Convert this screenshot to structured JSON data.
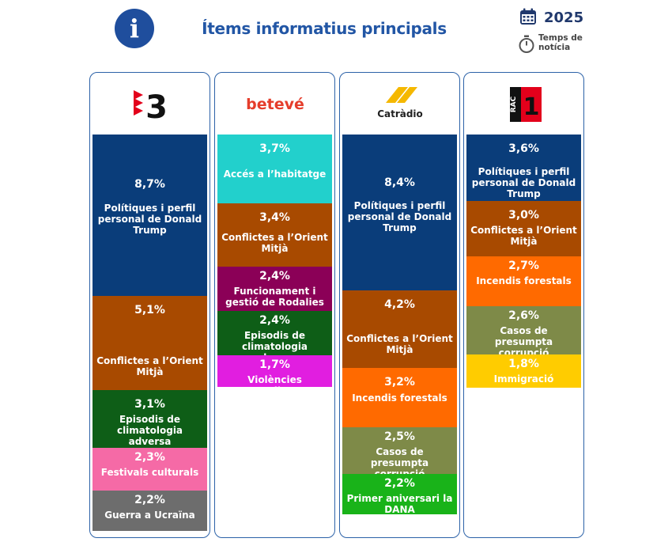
{
  "header": {
    "title": "Ítems informatius principals",
    "year": "2025",
    "time_label": "Temps de notícia",
    "icons": [
      "info-icon",
      "calendar-icon",
      "stopwatch-icon"
    ]
  },
  "chart_data": {
    "type": "bar",
    "stacked": true,
    "title": "Ítems informatius principals",
    "unit": "%",
    "panels": [
      {
        "name": "3",
        "logo": "tv3-logo",
        "items": [
          {
            "label": "Polítiques i perfil personal de Donald Trump",
            "value": 8.7,
            "display": "8,7%",
            "color": "#0a3d7a"
          },
          {
            "label": "Conflictes a l’Orient Mitjà",
            "value": 5.1,
            "display": "5,1%",
            "color": "#a84a00"
          },
          {
            "label": "Episodis de climatologia adversa",
            "value": 3.1,
            "display": "3,1%",
            "color": "#0e5e17"
          },
          {
            "label": "Festivals culturals",
            "value": 2.3,
            "display": "2,3%",
            "color": "#f56aa6"
          },
          {
            "label": "Guerra a Ucraïna",
            "value": 2.2,
            "display": "2,2%",
            "color": "#6d6d6d"
          }
        ]
      },
      {
        "name": "betevé",
        "logo": "betevé-logo",
        "items": [
          {
            "label": "Accés a l’habitatge",
            "value": 3.7,
            "display": "3,7%",
            "color": "#22d0cc"
          },
          {
            "label": "Conflictes a l’Orient Mitjà",
            "value": 3.4,
            "display": "3,4%",
            "color": "#a84a00"
          },
          {
            "label": "Funcionament i gestió de Rodalies",
            "value": 2.4,
            "display": "2,4%",
            "color": "#8b0057"
          },
          {
            "label": "Episodis de climatologia adversa",
            "value": 2.4,
            "display": "2,4%",
            "color": "#0e5e17"
          },
          {
            "label": "Violències masclistes",
            "value": 1.7,
            "display": "1,7%",
            "color": "#e11ee0"
          }
        ]
      },
      {
        "name": "Catràdio",
        "logo": "catràdio-logo",
        "items": [
          {
            "label": "Polítiques i perfil personal de Donald Trump",
            "value": 8.4,
            "display": "8,4%",
            "color": "#0a3d7a"
          },
          {
            "label": "Conflictes a l’Orient Mitjà",
            "value": 4.2,
            "display": "4,2%",
            "color": "#a84a00"
          },
          {
            "label": "Incendis forestals",
            "value": 3.2,
            "display": "3,2%",
            "color": "#ff6a00"
          },
          {
            "label": "Casos de presumpta corrupció",
            "value": 2.5,
            "display": "2,5%",
            "color": "#7e8a48"
          },
          {
            "label": "Primer aniversari la DANA",
            "value": 2.2,
            "display": "2,2%",
            "color": "#19b319"
          }
        ]
      },
      {
        "name": "RAC 1",
        "logo": "rac1-logo",
        "items": [
          {
            "label": "Polítiques i perfil personal de Donald Trump",
            "value": 3.6,
            "display": "3,6%",
            "color": "#0a3d7a"
          },
          {
            "label": "Conflictes a l’Orient Mitjà",
            "value": 3.0,
            "display": "3,0%",
            "color": "#a84a00"
          },
          {
            "label": "Incendis forestals",
            "value": 2.7,
            "display": "2,7%",
            "color": "#ff6a00"
          },
          {
            "label": "Casos de presumpta corrupció",
            "value": 2.6,
            "display": "2,6%",
            "color": "#7e8a48"
          },
          {
            "label": "Immigració",
            "value": 1.8,
            "display": "1,8%",
            "color": "#ffcc00"
          }
        ]
      }
    ]
  }
}
